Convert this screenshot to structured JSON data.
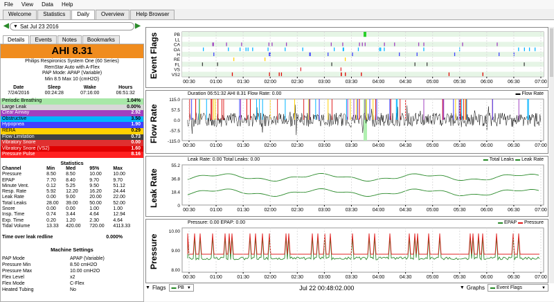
{
  "menu": [
    "File",
    "View",
    "Data",
    "Help"
  ],
  "tabs": [
    "Welcome",
    "Statistics",
    "Daily",
    "Overview",
    "Help Browser"
  ],
  "active_tab": "Daily",
  "date": "Sat Jul 23 2016",
  "subtabs": [
    "Details",
    "Events",
    "Notes",
    "Bookmarks"
  ],
  "ahi": "AHI 8.31",
  "machine": [
    "Philips Respironics System One (60 Series)",
    "RemStar Auto with A-Flex",
    "PAP Mode: APAP (Variable)",
    "Min 8.5 Max 10 (cmH2O)"
  ],
  "sleep": {
    "headers": [
      "Date",
      "Sleep",
      "Wake",
      "Hours"
    ],
    "values": [
      "7/24/2016",
      "00:24:28",
      "07:16:00",
      "06:51:32"
    ]
  },
  "indices": [
    {
      "label": "Periodic Breathing",
      "value": "1.04%",
      "color": "#a8e8a8"
    },
    {
      "label": "Large Leak",
      "value": "0.00%",
      "color": "#d8d8d8"
    },
    {
      "label": "Clear Airway",
      "value": "2.92",
      "color": "#a040c0"
    },
    {
      "label": "Obstructive",
      "value": "3.50",
      "color": "#00b4ff"
    },
    {
      "label": "Hypopnea",
      "value": "1.90",
      "color": "#4040ff"
    },
    {
      "label": "RERA",
      "value": "0.29",
      "color": "#ffd000"
    },
    {
      "label": "Flow Limitation",
      "value": "0.73",
      "color": "#404040"
    },
    {
      "label": "Vibratory Snore",
      "value": "0.00",
      "color": "#e03030"
    },
    {
      "label": "Vibratory Snore (VS2)",
      "value": "1.60",
      "color": "#e00000"
    },
    {
      "label": "Pressure Pulse",
      "value": "8.16",
      "color": "#ff2020"
    }
  ],
  "stats": {
    "title": "Statistics",
    "headers": [
      "Channel",
      "Min",
      "Med",
      "95%",
      "Max"
    ],
    "rows": [
      [
        "Pressure",
        "8.50",
        "8.50",
        "10.00",
        "10.00"
      ],
      [
        "EPAP",
        "7.70",
        "8.40",
        "9.70",
        "9.70"
      ],
      [
        "Minute Vent.",
        "0.12",
        "5.25",
        "9.50",
        "51.12"
      ],
      [
        "Resp. Rate",
        "5.92",
        "12.20",
        "16.20",
        "24.44"
      ],
      [
        "Leak Rate",
        "0.00",
        "9.00",
        "20.00",
        "22.00"
      ],
      [
        "Total Leaks",
        "28.00",
        "39.00",
        "50.00",
        "52.00"
      ],
      [
        "Snore",
        "0.00",
        "0.00",
        "1.00",
        "1.00"
      ],
      [
        "Insp. Time",
        "0.74",
        "3.44",
        "4.64",
        "12.94"
      ],
      [
        "Exp. Time",
        "0.20",
        "1.20",
        "2.30",
        "4.64"
      ],
      [
        "Tidal Volume",
        "13.33",
        "420.00",
        "720.00",
        "4113.33"
      ]
    ]
  },
  "time_over_leak": {
    "label": "Time over leak redline",
    "value": "0.000%"
  },
  "machine_settings": {
    "title": "Machine Settings",
    "rows": [
      [
        "PAP Mode",
        "APAP (Variable)"
      ],
      [
        "Pressure Min",
        "8.50 cmH2O"
      ],
      [
        "Pressure Max",
        "10.00 cmH2O"
      ],
      [
        "Flex Level",
        "x2"
      ],
      [
        "Flex Mode",
        "C-Flex"
      ],
      [
        "Heated Tubing",
        "No"
      ]
    ]
  },
  "time_ticks": [
    "00:30",
    "01:00",
    "01:30",
    "02:00",
    "02:30",
    "03:00",
    "03:30",
    "04:00",
    "04:30",
    "05:00",
    "05:30",
    "06:00",
    "06:30",
    "07:00"
  ],
  "event_flags": {
    "ylabel": "Event Flags",
    "rows": [
      "PB",
      "LL",
      "CA",
      "OA",
      "H",
      "RE",
      "FL",
      "VS",
      "VS2"
    ]
  },
  "flow_rate": {
    "ylabel": "Flow Rate",
    "title": "Duration 06:51:32 AHI 8.31 Flow Rate: 0.00",
    "legend": "Flow Rate",
    "yticks": [
      "115.0",
      "57.5",
      "0.0",
      "-57.5",
      "-115.0"
    ]
  },
  "leak_rate": {
    "ylabel": "Leak Rate",
    "title": "Leak Rate: 0.00 Total Leaks: 0.00",
    "legend": [
      "Total Leaks",
      "Leak Rate"
    ],
    "yticks": [
      "55.2",
      "36.8",
      "18.4",
      "0"
    ]
  },
  "pressure": {
    "ylabel": "Pressure",
    "title": "Pressure: 0.00 EPAP: 0.00",
    "legend": [
      "EPAP",
      "Pressure"
    ],
    "yticks": [
      "10.00",
      "9.00",
      "8.00"
    ]
  },
  "bottom": {
    "flags_label": "Flags",
    "flags_value": "PB",
    "time": "Jul 22 00:48:02.000",
    "graphs_label": "Graphs",
    "graphs_value": "Event Flags"
  },
  "colors": {
    "ahi_bg": "#f08c1e",
    "flow": "#000000",
    "leak": "#2a8a2a",
    "pressure": "#e02020",
    "epap": "#2a8a2a"
  }
}
